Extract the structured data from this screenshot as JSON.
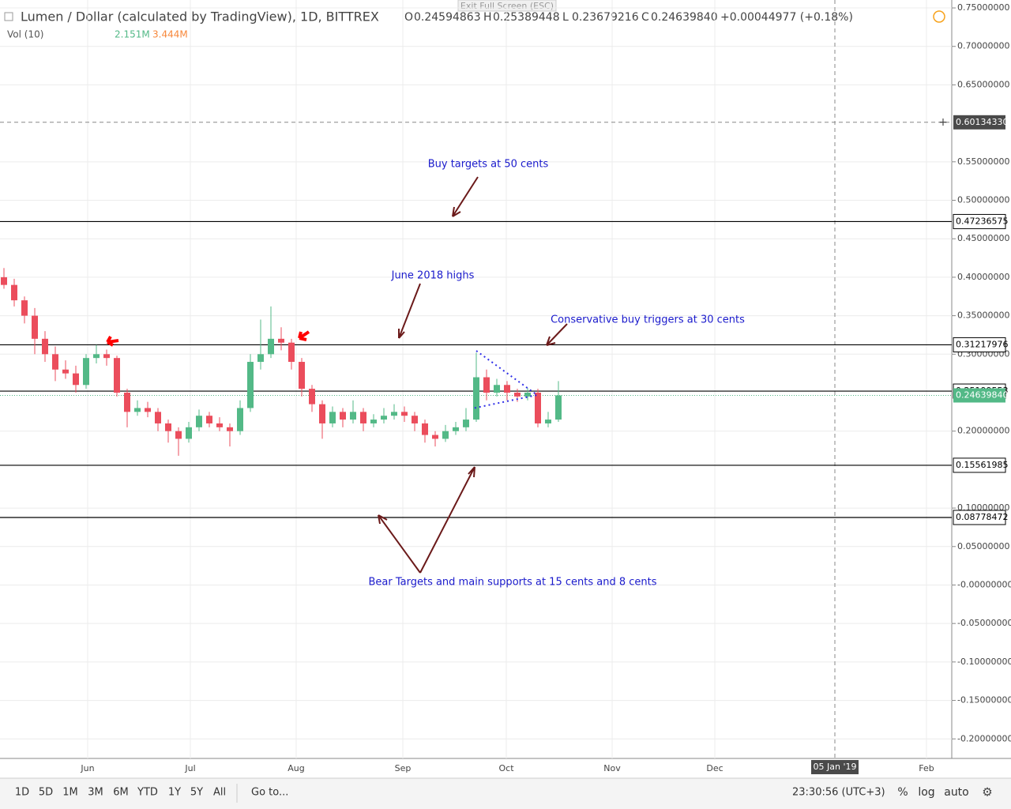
{
  "header": {
    "exit_fullscreen": "Exit Full Screen (ESC)",
    "ohlc": [
      {
        "key": "O",
        "value": "0.24594863"
      },
      {
        "key": "H",
        "value": "0.25389448"
      },
      {
        "key": "L",
        "value": "0.23679216"
      },
      {
        "key": "C",
        "value": "0.24639840"
      }
    ],
    "change": "+0.00044977 (+0.18%)",
    "volume_label": "Vol (10)",
    "volume_values": [
      "2.151M",
      "3.444M"
    ]
  },
  "chart_data": {
    "type": "candlestick",
    "title": "Lumen / Dollar (calculated by TradingView), 1D, BITTREX",
    "up_color": "#53b987",
    "down_color": "#eb4d5c",
    "candles": [
      [
        0.4,
        0.412,
        0.385,
        0.39
      ],
      [
        0.39,
        0.398,
        0.362,
        0.37
      ],
      [
        0.37,
        0.375,
        0.34,
        0.35
      ],
      [
        0.35,
        0.36,
        0.3,
        0.32
      ],
      [
        0.32,
        0.33,
        0.29,
        0.3
      ],
      [
        0.3,
        0.31,
        0.265,
        0.28
      ],
      [
        0.28,
        0.292,
        0.268,
        0.275
      ],
      [
        0.275,
        0.285,
        0.25,
        0.26
      ],
      [
        0.26,
        0.3,
        0.255,
        0.295
      ],
      [
        0.295,
        0.312,
        0.288,
        0.3
      ],
      [
        0.3,
        0.306,
        0.285,
        0.295
      ],
      [
        0.295,
        0.298,
        0.245,
        0.25
      ],
      [
        0.25,
        0.255,
        0.205,
        0.225
      ],
      [
        0.225,
        0.24,
        0.22,
        0.23
      ],
      [
        0.23,
        0.238,
        0.218,
        0.225
      ],
      [
        0.225,
        0.23,
        0.2,
        0.21
      ],
      [
        0.21,
        0.215,
        0.185,
        0.2
      ],
      [
        0.2,
        0.205,
        0.168,
        0.19
      ],
      [
        0.19,
        0.212,
        0.185,
        0.205
      ],
      [
        0.205,
        0.228,
        0.2,
        0.22
      ],
      [
        0.22,
        0.225,
        0.205,
        0.21
      ],
      [
        0.21,
        0.218,
        0.2,
        0.205
      ],
      [
        0.205,
        0.21,
        0.18,
        0.2
      ],
      [
        0.2,
        0.24,
        0.195,
        0.23
      ],
      [
        0.23,
        0.3,
        0.225,
        0.29
      ],
      [
        0.29,
        0.345,
        0.28,
        0.3
      ],
      [
        0.3,
        0.362,
        0.295,
        0.32
      ],
      [
        0.32,
        0.335,
        0.305,
        0.315
      ],
      [
        0.315,
        0.32,
        0.28,
        0.29
      ],
      [
        0.29,
        0.295,
        0.245,
        0.255
      ],
      [
        0.255,
        0.26,
        0.225,
        0.235
      ],
      [
        0.235,
        0.24,
        0.19,
        0.21
      ],
      [
        0.21,
        0.232,
        0.205,
        0.225
      ],
      [
        0.225,
        0.23,
        0.205,
        0.215
      ],
      [
        0.215,
        0.24,
        0.21,
        0.225
      ],
      [
        0.225,
        0.23,
        0.2,
        0.21
      ],
      [
        0.21,
        0.222,
        0.205,
        0.215
      ],
      [
        0.215,
        0.23,
        0.21,
        0.22
      ],
      [
        0.22,
        0.235,
        0.215,
        0.225
      ],
      [
        0.225,
        0.232,
        0.212,
        0.22
      ],
      [
        0.22,
        0.225,
        0.2,
        0.21
      ],
      [
        0.21,
        0.215,
        0.185,
        0.195
      ],
      [
        0.195,
        0.2,
        0.18,
        0.19
      ],
      [
        0.19,
        0.208,
        0.186,
        0.2
      ],
      [
        0.2,
        0.212,
        0.195,
        0.205
      ],
      [
        0.205,
        0.23,
        0.2,
        0.215
      ],
      [
        0.215,
        0.302,
        0.212,
        0.27
      ],
      [
        0.27,
        0.28,
        0.24,
        0.25
      ],
      [
        0.25,
        0.268,
        0.245,
        0.26
      ],
      [
        0.26,
        0.265,
        0.24,
        0.25
      ],
      [
        0.25,
        0.255,
        0.238,
        0.245
      ],
      [
        0.245,
        0.256,
        0.24,
        0.25
      ],
      [
        0.25,
        0.255,
        0.205,
        0.21
      ],
      [
        0.21,
        0.225,
        0.205,
        0.215
      ],
      [
        0.215,
        0.265,
        0.212,
        0.2463984
      ]
    ],
    "ylim": [
      -0.2254,
      0.7603
    ],
    "yticks": [
      {
        "value": 0.75,
        "label": "0.75000000"
      },
      {
        "value": 0.7,
        "label": "0.70000000"
      },
      {
        "value": 0.65,
        "label": "0.65000000"
      },
      {
        "value": 0.55,
        "label": "0.55000000"
      },
      {
        "value": 0.5,
        "label": "0.50000000"
      },
      {
        "value": 0.45,
        "label": "0.45000000"
      },
      {
        "value": 0.4,
        "label": "0.40000000"
      },
      {
        "value": 0.35,
        "label": "0.35000000"
      },
      {
        "value": 0.3,
        "label": "0.30000000"
      },
      {
        "value": 0.2,
        "label": "0.20000000"
      },
      {
        "value": 0.1,
        "label": "0.10000000"
      },
      {
        "value": 0.05,
        "label": "0.05000000"
      },
      {
        "value": 0,
        "label": "-0.00000000"
      },
      {
        "value": -0.05,
        "label": "-0.05000000"
      },
      {
        "value": -0.1,
        "label": "-0.10000000"
      },
      {
        "value": -0.15,
        "label": "-0.15000000"
      },
      {
        "value": -0.2,
        "label": "-0.20000000"
      }
    ],
    "x_labels": [
      "Jun",
      "Jul",
      "Aug",
      "Sep",
      "Oct",
      "Nov",
      "Dec",
      "Feb"
    ],
    "cursor_date": "05 Jan '19",
    "crosshair": {
      "value": 0.6013433,
      "label": "0.60134330"
    },
    "levels": [
      0.47236575,
      0.31217976,
      0.25199553,
      0.15561985,
      0.08778472
    ],
    "last_price": {
      "value": 0.2463984,
      "label": "0.24639840"
    },
    "annotations": [
      "Buy targets at 50 cents",
      "June 2018 highs",
      "Conservative buy triggers at 30 cents",
      "Bear Targets and main supports at 15 cents and 8 cents"
    ]
  },
  "toolbar": {
    "ranges": [
      "1D",
      "5D",
      "1M",
      "3M",
      "6M",
      "YTD",
      "1Y",
      "5Y",
      "All"
    ],
    "goto": "Go to...",
    "time": "23:30:56 (UTC+3)",
    "options": [
      "%",
      "log",
      "auto"
    ]
  }
}
